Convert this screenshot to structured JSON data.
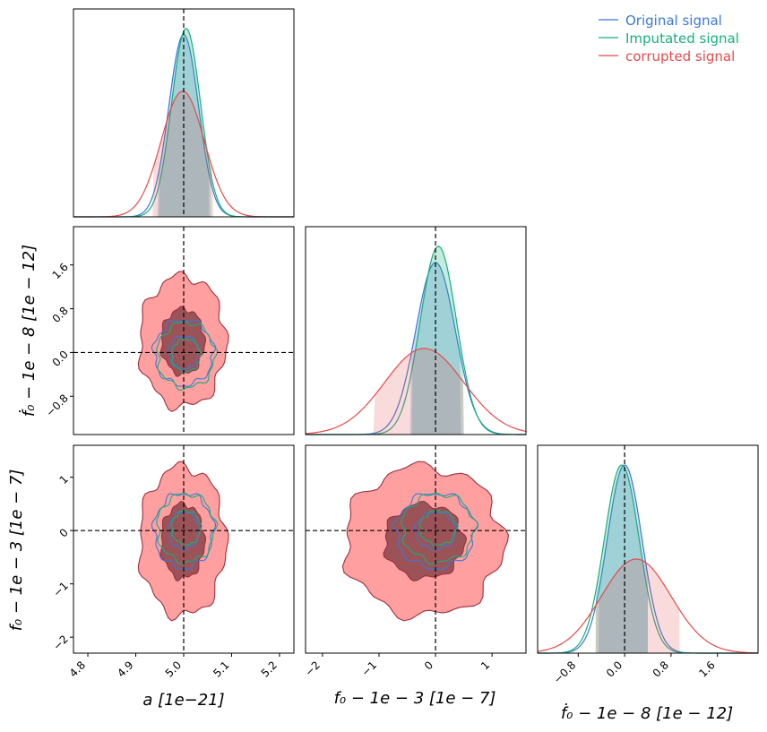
{
  "colors": {
    "original": "#3a78d8",
    "imputated": "#14b07a",
    "corrupted": "#e84a4a"
  },
  "legend": [
    {
      "label": "Original signal",
      "color": "#3a78d8"
    },
    {
      "label": "Imputated signal",
      "color": "#14b07a"
    },
    {
      "label": "corrupted signal",
      "color": "#e84a4a"
    }
  ],
  "axis_labels": {
    "a": "a [1e−21]",
    "f0": "f₀ − 1e − 3 [1e − 7]",
    "fdot": "ḟ₀ − 1e − 8 [1e − 12]"
  },
  "chart_data": {
    "type": "corner",
    "parameters": [
      {
        "name": "a",
        "truth": 5.0,
        "range": [
          4.77,
          5.23
        ],
        "ticks": [
          "4.8",
          "4.9",
          "5.0",
          "5.1",
          "5.2"
        ],
        "tick_values": [
          4.8,
          4.9,
          5.0,
          5.1,
          5.2
        ]
      },
      {
        "name": "f0",
        "truth": 0.0,
        "range": [
          -2.3,
          1.6
        ],
        "ticks": [
          "−2",
          "−1",
          "0",
          "1"
        ],
        "tick_values": [
          -2,
          -1,
          0,
          1
        ]
      },
      {
        "name": "fdot",
        "truth": 0.0,
        "range": [
          -1.5,
          2.3
        ],
        "ticks": [
          "−0.8",
          "0.0",
          "0.8",
          "1.6"
        ],
        "tick_values": [
          -0.8,
          0.0,
          0.8,
          1.6
        ]
      }
    ],
    "series": [
      {
        "name": "Original signal",
        "mean_a": 5.0,
        "sigma_a": 0.031,
        "mean_f0": 0.0,
        "sigma_f0": 0.35,
        "mean_fdot": 0.0,
        "sigma_fdot": 0.3,
        "ci_a": [
          4.945,
          5.053
        ],
        "ci_f0": [
          -0.45,
          0.45
        ],
        "ci_fdot": [
          -0.45,
          0.4
        ]
      },
      {
        "name": "Imputated signal",
        "mean_a": 5.005,
        "sigma_a": 0.03,
        "mean_f0": 0.05,
        "sigma_f0": 0.32,
        "mean_fdot": -0.05,
        "sigma_fdot": 0.3,
        "ci_a": [
          4.948,
          5.058
        ],
        "ci_f0": [
          -0.42,
          0.5
        ],
        "ci_fdot": [
          -0.5,
          0.4
        ]
      },
      {
        "name": "corrupted signal",
        "mean_a": 4.998,
        "sigma_a": 0.045,
        "mean_f0": -0.2,
        "sigma_f0": 0.7,
        "mean_fdot": 0.2,
        "sigma_fdot": 0.6,
        "ci_a": [
          4.935,
          5.062
        ],
        "ci_f0": [
          -1.1,
          0.5
        ],
        "ci_fdot": [
          -0.5,
          0.95
        ]
      }
    ],
    "grid": false,
    "legend_position": "top-right"
  }
}
